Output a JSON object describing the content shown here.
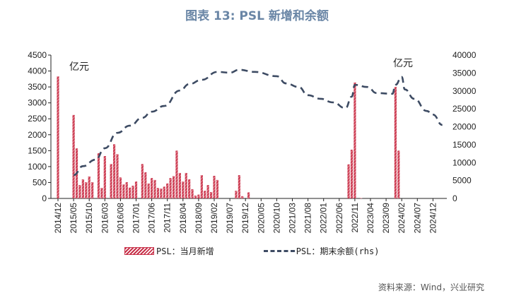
{
  "chart_data": {
    "type": "bar+line",
    "title": "图表 13: PSL 新增和余额",
    "left_axis": {
      "unit": "亿元",
      "ylim": [
        0,
        4500
      ],
      "ticks": [
        0,
        500,
        1000,
        1500,
        2000,
        2500,
        3000,
        3500,
        4000,
        4500
      ]
    },
    "right_axis": {
      "unit": "亿元",
      "ylim": [
        0,
        40000
      ],
      "ticks": [
        0,
        5000,
        10000,
        15000,
        20000,
        25000,
        30000,
        35000,
        40000
      ]
    },
    "x_ticks": [
      "2014/12",
      "2015/05",
      "2015/10",
      "2016/03",
      "2016/08",
      "2017/01",
      "2017/06",
      "2017/11",
      "2018/04",
      "2018/09",
      "2019/02",
      "2019/07",
      "2019/12",
      "2020/05",
      "2020/10",
      "2021/03",
      "2021/08",
      "2022/01",
      "2022/06",
      "2022/11",
      "2023/04",
      "2023/09",
      "2024/02",
      "2024/07",
      "2024/12"
    ],
    "grid": false,
    "legend_position": "bottom",
    "series": [
      {
        "name": "PSL：当月新增",
        "type": "bar",
        "axis": "left",
        "color": "#c8324a",
        "points": [
          [
            "2014/12",
            3830
          ],
          [
            "2015/05",
            2620
          ],
          [
            "2015/06",
            1570
          ],
          [
            "2015/07",
            420
          ],
          [
            "2015/08",
            600
          ],
          [
            "2015/09",
            510
          ],
          [
            "2015/10",
            690
          ],
          [
            "2015/11",
            510
          ],
          [
            "2016/01",
            1420
          ],
          [
            "2016/02",
            330
          ],
          [
            "2016/03",
            1330
          ],
          [
            "2016/05",
            1080
          ],
          [
            "2016/06",
            1700
          ],
          [
            "2016/07",
            1390
          ],
          [
            "2016/08",
            660
          ],
          [
            "2016/09",
            440
          ],
          [
            "2016/10",
            510
          ],
          [
            "2016/11",
            340
          ],
          [
            "2016/12",
            400
          ],
          [
            "2017/01",
            530
          ],
          [
            "2017/03",
            1080
          ],
          [
            "2017/04",
            820
          ],
          [
            "2017/05",
            470
          ],
          [
            "2017/06",
            640
          ],
          [
            "2017/07",
            580
          ],
          [
            "2017/08",
            330
          ],
          [
            "2017/09",
            310
          ],
          [
            "2017/10",
            370
          ],
          [
            "2017/11",
            470
          ],
          [
            "2017/12",
            640
          ],
          [
            "2018/01",
            700
          ],
          [
            "2018/02",
            1500
          ],
          [
            "2018/03",
            800
          ],
          [
            "2018/04",
            530
          ],
          [
            "2018/05",
            800
          ],
          [
            "2018/06",
            600
          ],
          [
            "2018/07",
            290
          ],
          [
            "2018/08",
            90
          ],
          [
            "2018/09",
            120
          ],
          [
            "2018/10",
            730
          ],
          [
            "2018/11",
            240
          ],
          [
            "2018/12",
            420
          ],
          [
            "2019/01",
            200
          ],
          [
            "2019/02",
            710
          ],
          [
            "2019/03",
            580
          ],
          [
            "2019/09",
            240
          ],
          [
            "2019/10",
            730
          ],
          [
            "2019/11",
            70
          ],
          [
            "2020/01",
            190
          ],
          [
            "2022/09",
            1070
          ],
          [
            "2022/10",
            1530
          ],
          [
            "2022/11",
            3640
          ],
          [
            "2023/01",
            10
          ],
          [
            "2023/12",
            3500
          ],
          [
            "2024/01",
            1500
          ]
        ]
      },
      {
        "name": "PSL：期末余额(rhs)",
        "type": "line",
        "axis": "right",
        "color": "#3d4b63",
        "style": "dashed",
        "points": [
          [
            "2015/05",
            6500
          ],
          [
            "2015/08",
            9000
          ],
          [
            "2015/12",
            10800
          ],
          [
            "2016/03",
            14000
          ],
          [
            "2016/07",
            18300
          ],
          [
            "2016/11",
            20300
          ],
          [
            "2017/03",
            22500
          ],
          [
            "2017/06",
            24200
          ],
          [
            "2017/10",
            25800
          ],
          [
            "2018/03",
            30100
          ],
          [
            "2018/06",
            31900
          ],
          [
            "2018/10",
            33100
          ],
          [
            "2019/03",
            35300
          ],
          [
            "2019/07",
            35100
          ],
          [
            "2019/10",
            35900
          ],
          [
            "2020/03",
            35300
          ],
          [
            "2020/10",
            34100
          ],
          [
            "2021/01",
            32100
          ],
          [
            "2021/05",
            31100
          ],
          [
            "2021/08",
            28800
          ],
          [
            "2021/12",
            27800
          ],
          [
            "2022/04",
            26800
          ],
          [
            "2022/08",
            25200
          ],
          [
            "2022/10",
            28400
          ],
          [
            "2022/11",
            31700
          ],
          [
            "2023/03",
            31100
          ],
          [
            "2023/06",
            29400
          ],
          [
            "2023/11",
            29200
          ],
          [
            "2023/12",
            31700
          ],
          [
            "2024/02",
            33900
          ],
          [
            "2024/03",
            30400
          ],
          [
            "2024/06",
            27800
          ],
          [
            "2024/10",
            24400
          ],
          [
            "2024/12",
            23400
          ],
          [
            "2025/03",
            20500
          ]
        ]
      }
    ]
  },
  "legend": {
    "bar_label": "PSL：当月新增",
    "line_label": "PSL：期末余额(rhs)"
  },
  "source": "资料来源：Wind，兴业研究"
}
